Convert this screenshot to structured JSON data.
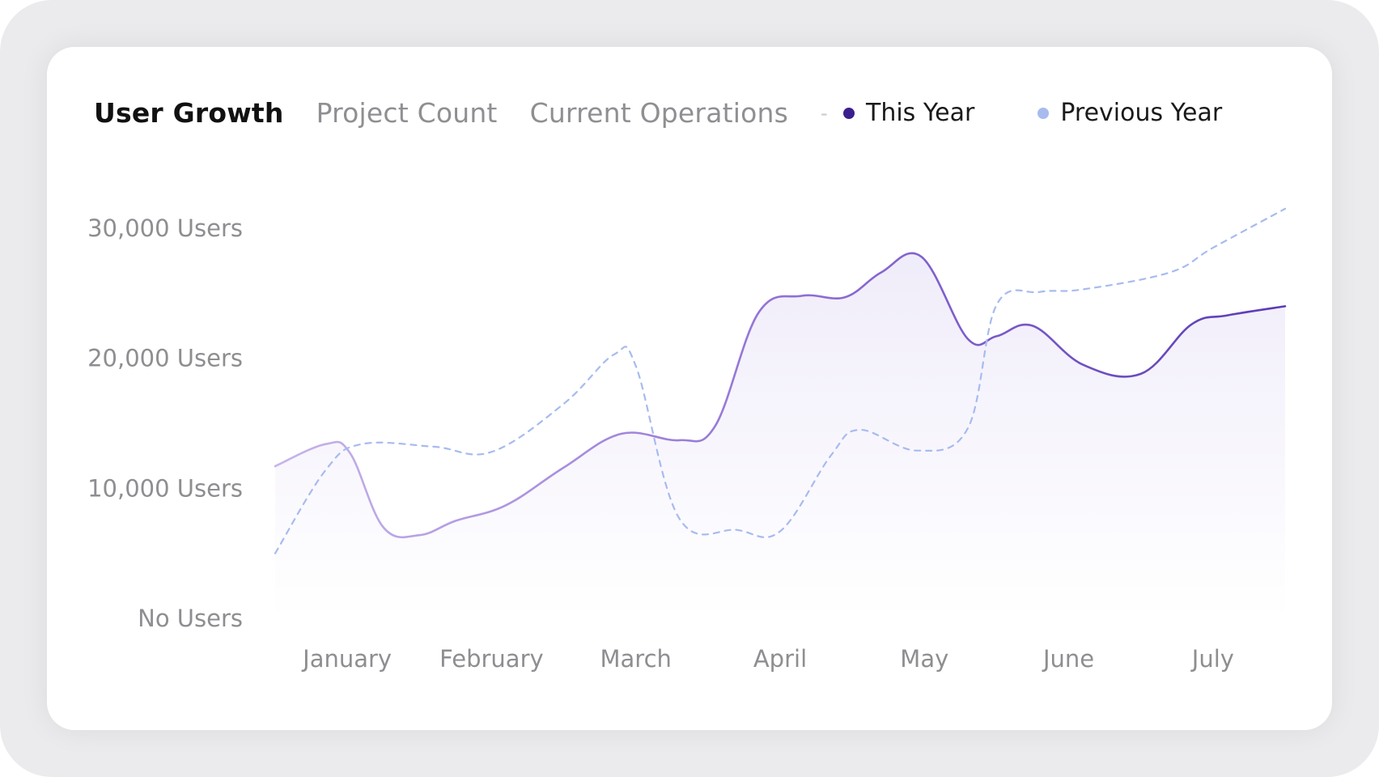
{
  "tabs": [
    {
      "label": "User Growth",
      "active": true
    },
    {
      "label": "Project Count",
      "active": false
    },
    {
      "label": "Current Operations",
      "active": false
    }
  ],
  "separator": "-",
  "legend": [
    {
      "label": "This Year",
      "color": "#3b1f8f"
    },
    {
      "label": "Previous Year",
      "color": "#a7bbef"
    }
  ],
  "chart_data": {
    "type": "line",
    "title": "User Growth",
    "xlabel": "",
    "ylabel": "",
    "ylim": [
      0,
      30000
    ],
    "y_ticks": [
      {
        "value": 30000,
        "label": "30,000 Users"
      },
      {
        "value": 20000,
        "label": "20,000 Users"
      },
      {
        "value": 10000,
        "label": "10,000 Users"
      },
      {
        "value": 0,
        "label": "No Users"
      }
    ],
    "categories": [
      "January",
      "February",
      "March",
      "April",
      "May",
      "June",
      "July"
    ],
    "x_range": [
      0.5,
      7.5
    ],
    "series": [
      {
        "name": "This Year",
        "color": "#7b5cc9",
        "style": "solid",
        "fill": true,
        "x": [
          0.5,
          0.85,
          1.02,
          1.25,
          1.5,
          1.75,
          2.1,
          2.5,
          2.9,
          3.3,
          3.55,
          3.85,
          4.15,
          4.45,
          4.7,
          4.98,
          5.3,
          5.5,
          5.75,
          6.1,
          6.5,
          6.85,
          7.1,
          7.5
        ],
        "y": [
          11700,
          13400,
          12700,
          7000,
          6400,
          7500,
          8700,
          11600,
          14200,
          13700,
          14800,
          23500,
          24800,
          24700,
          26600,
          27800,
          21500,
          21700,
          22500,
          19500,
          18800,
          22600,
          23300,
          24000
        ]
      },
      {
        "name": "Previous Year",
        "color": "#a7bbef",
        "style": "dashed",
        "fill": false,
        "x": [
          0.5,
          0.85,
          1.1,
          1.6,
          2.0,
          2.5,
          2.85,
          3.0,
          3.3,
          3.7,
          4.0,
          4.35,
          4.55,
          4.95,
          5.3,
          5.5,
          5.8,
          6.1,
          6.7,
          7.0,
          7.5
        ],
        "y": [
          5000,
          11400,
          13400,
          13200,
          12800,
          16500,
          20300,
          19400,
          7700,
          6800,
          6700,
          12500,
          14500,
          12900,
          14600,
          24100,
          25100,
          25300,
          26600,
          28500,
          31500
        ]
      }
    ]
  }
}
